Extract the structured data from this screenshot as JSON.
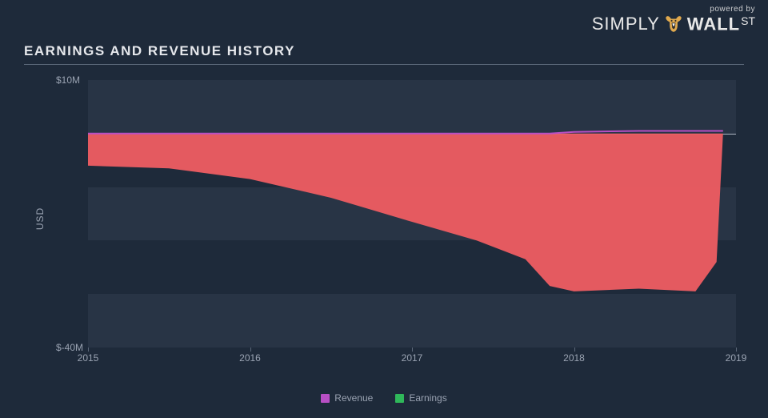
{
  "brand": {
    "powered": "powered by",
    "word1": "SIMPLY",
    "word2": "WALL",
    "suffix": "ST"
  },
  "title": "EARNINGS AND REVENUE HISTORY",
  "background_color": "#1e2a3a",
  "band_color": "#283445",
  "axis_text_color": "#9aa3b2",
  "chart": {
    "type": "area",
    "ylabel": "USD",
    "ylim": [
      -40,
      10
    ],
    "yticks": [
      {
        "v": 10,
        "label": "$10M"
      },
      {
        "v": -40,
        "label": "$-40M"
      }
    ],
    "bands": [
      {
        "from": 10,
        "to": 0
      },
      {
        "from": -10,
        "to": -20
      },
      {
        "from": -30,
        "to": -40
      }
    ],
    "xlim": [
      2015,
      2019
    ],
    "xticks": [
      {
        "v": 2015,
        "label": "2015"
      },
      {
        "v": 2016,
        "label": "2016"
      },
      {
        "v": 2017,
        "label": "2017"
      },
      {
        "v": 2018,
        "label": "2018"
      },
      {
        "v": 2019,
        "label": "2019"
      }
    ],
    "series": {
      "revenue": {
        "label": "Revenue",
        "color": "#b84fc4"
      },
      "earnings": {
        "label": "Earnings",
        "color": "#2fb85a",
        "fill_to_zero_color": "#ef5d62",
        "fill_opacity": 0.95
      }
    },
    "points": [
      {
        "x": 2015.0,
        "revenue": 0.0,
        "earnings": -6.0
      },
      {
        "x": 2015.5,
        "revenue": 0.0,
        "earnings": -6.5
      },
      {
        "x": 2016.0,
        "revenue": 0.0,
        "earnings": -8.5
      },
      {
        "x": 2016.5,
        "revenue": 0.0,
        "earnings": -12.0
      },
      {
        "x": 2017.0,
        "revenue": 0.0,
        "earnings": -16.5
      },
      {
        "x": 2017.4,
        "revenue": 0.0,
        "earnings": -20.0
      },
      {
        "x": 2017.7,
        "revenue": 0.0,
        "earnings": -23.5
      },
      {
        "x": 2017.85,
        "revenue": 0.0,
        "earnings": -28.5
      },
      {
        "x": 2018.0,
        "revenue": 0.3,
        "earnings": -29.5
      },
      {
        "x": 2018.4,
        "revenue": 0.5,
        "earnings": -29.0
      },
      {
        "x": 2018.75,
        "revenue": 0.5,
        "earnings": -29.5
      },
      {
        "x": 2018.88,
        "revenue": 0.5,
        "earnings": -24.0
      },
      {
        "x": 2018.92,
        "revenue": 0.5,
        "earnings": 0.0
      }
    ]
  },
  "legend": [
    {
      "key": "revenue",
      "label": "Revenue",
      "color": "#b84fc4"
    },
    {
      "key": "earnings",
      "label": "Earnings",
      "color": "#2fb85a"
    }
  ]
}
